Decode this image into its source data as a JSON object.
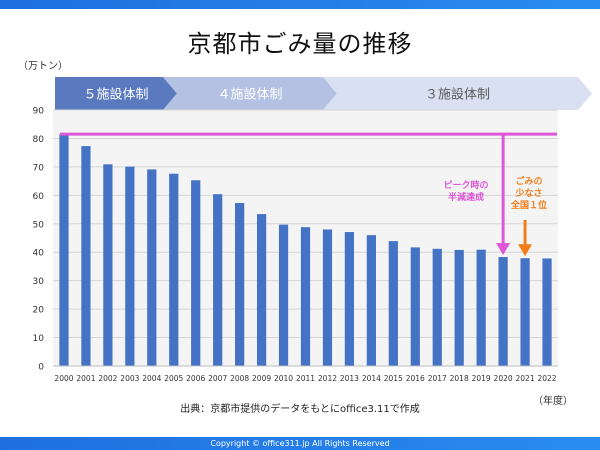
{
  "title": "京都市ごみ量の推移",
  "unit_label": "（万トン）",
  "year_unit_label": "（年度）",
  "source": "出典：京都市提供のデータをもとにoffice3.11で作成",
  "copyright": "Copyright © office311.jp All Rights Reserved",
  "phases": [
    {
      "label": "５施設体制",
      "color": "#5b79bf",
      "text_color": "#ffffff"
    },
    {
      "label": "４施設体制",
      "color": "#b4c1e3",
      "text_color": "#ffffff"
    },
    {
      "label": "３施設体制",
      "color": "#d9e0f1",
      "text_color": "#5a5a5a"
    }
  ],
  "annotations": {
    "peak_half": {
      "lines": [
        "ピーク時の",
        "半減達成"
      ],
      "color": "#de57d6"
    },
    "least_waste": {
      "lines": [
        "ごみの",
        "少なさ",
        "全国１位"
      ],
      "color": "#f07f1a"
    }
  },
  "chart_data": {
    "type": "bar",
    "categories": [
      "2000",
      "2001",
      "2002",
      "2003",
      "2004",
      "2005",
      "2006",
      "2007",
      "2008",
      "2009",
      "2010",
      "2011",
      "2012",
      "2013",
      "2014",
      "2015",
      "2016",
      "2017",
      "2018",
      "2019",
      "2020",
      "2021",
      "2022"
    ],
    "values": [
      81.5,
      77.3,
      70.9,
      70.1,
      69.1,
      67.6,
      65.3,
      60.4,
      57.3,
      53.4,
      49.7,
      48.8,
      48.0,
      47.1,
      46.0,
      43.9,
      41.7,
      41.2,
      40.8,
      40.9,
      38.3,
      37.9,
      37.8
    ],
    "ylim": [
      0,
      90
    ],
    "yticks": [
      0,
      10,
      20,
      30,
      40,
      50,
      60,
      70,
      80,
      90
    ],
    "grid": true,
    "bar_color": "#4472c4",
    "peak_line_value": 81.5,
    "peak_line_color": "#de57d6"
  }
}
